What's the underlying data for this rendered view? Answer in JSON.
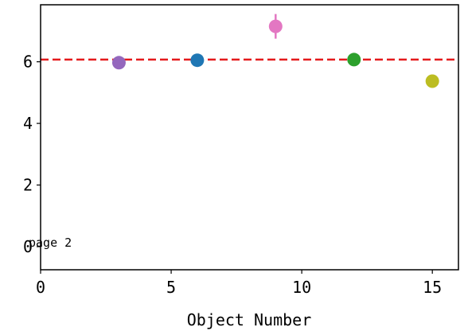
{
  "chart_data": {
    "type": "scatter",
    "title": "",
    "xlabel": "Object Number",
    "ylabel": "",
    "xlim": [
      0,
      16
    ],
    "ylim": [
      -0.75,
      7.85
    ],
    "x_ticks": [
      0,
      5,
      10,
      15
    ],
    "y_ticks": [
      0,
      2,
      4,
      6
    ],
    "grid": false,
    "reference_line": {
      "y": 6.07,
      "color": "#e41a1c",
      "style": "dashed"
    },
    "points": [
      {
        "x": 3,
        "y": 5.97,
        "yerr": 0.08,
        "color": "#9467bd"
      },
      {
        "x": 6,
        "y": 6.05,
        "yerr": 0.06,
        "color": "#1f77b4"
      },
      {
        "x": 9,
        "y": 7.15,
        "yerr": 0.4,
        "color": "#e377c2"
      },
      {
        "x": 12,
        "y": 6.07,
        "yerr": 0.18,
        "color": "#2ca02c"
      },
      {
        "x": 15,
        "y": 5.37,
        "yerr": 0.06,
        "color": "#bcbd22"
      }
    ],
    "annotation": "page 2"
  }
}
